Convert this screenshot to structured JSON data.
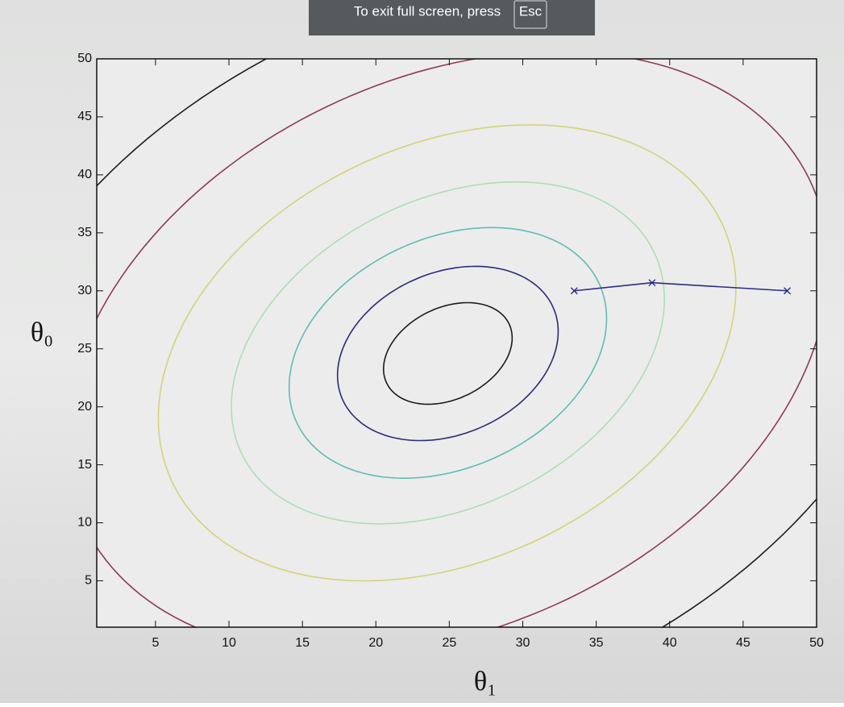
{
  "overlay": {
    "message": "To exit full screen, press",
    "key": "Esc"
  },
  "chart_data": {
    "type": "contour",
    "xlabel": "θ₁",
    "ylabel": "θ₀",
    "xlim": [
      1,
      50
    ],
    "ylim": [
      1,
      50
    ],
    "xticks": [
      5,
      10,
      15,
      20,
      25,
      30,
      35,
      40,
      45,
      50
    ],
    "yticks": [
      5,
      10,
      15,
      20,
      25,
      30,
      35,
      40,
      45,
      50
    ],
    "contours": [
      {
        "color": "#1c1c1c",
        "center": [
          24.9,
          24.6
        ],
        "a": 5,
        "b": 3.65,
        "angle": 45
      },
      {
        "color": "#2b2b78",
        "center": [
          24.9,
          24.6
        ],
        "a": 8.4,
        "b": 6.5,
        "angle": 45
      },
      {
        "color": "#5fbdb2",
        "center": [
          24.9,
          24.65
        ],
        "a": 12.2,
        "b": 9.2,
        "angle": 45
      },
      {
        "color": "#b0dcb8",
        "center": [
          24.9,
          24.65
        ],
        "a": 16.9,
        "b": 12.2,
        "angle": 45
      },
      {
        "color": "#d2d47a",
        "center": [
          24.85,
          24.65
        ],
        "a": 22.3,
        "b": 16.6,
        "angle": 45
      },
      {
        "color": "#8c3c50",
        "center": [
          24.85,
          24.65
        ],
        "a": 29.5,
        "b": 21.9,
        "angle": 45
      },
      {
        "color": "#1c1c1c",
        "center": [
          24.85,
          24.65
        ],
        "a": 37,
        "b": 27.5,
        "angle": 45
      }
    ],
    "series": [
      {
        "color": "#2b2b88",
        "x": [
          33.5,
          38.8,
          48
        ],
        "values": [
          30,
          30.7,
          30
        ]
      }
    ]
  }
}
